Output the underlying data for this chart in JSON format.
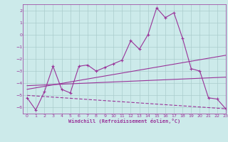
{
  "background_color": "#cceaea",
  "grid_color": "#aacccc",
  "line_color": "#993399",
  "title": "Windchill (Refroidissement éolien,°C)",
  "xlim": [
    -0.5,
    23
  ],
  "ylim": [
    -6.5,
    2.5
  ],
  "yticks": [
    -6,
    -5,
    -4,
    -3,
    -2,
    -1,
    0,
    1,
    2
  ],
  "xticks": [
    0,
    1,
    2,
    3,
    4,
    5,
    6,
    7,
    8,
    9,
    10,
    11,
    12,
    13,
    14,
    15,
    16,
    17,
    18,
    19,
    20,
    21,
    22,
    23
  ],
  "line1_x": [
    0,
    1,
    2,
    3,
    4,
    5,
    6,
    7,
    8,
    9,
    10,
    11,
    12,
    13,
    14,
    15,
    16,
    17,
    18,
    19,
    20,
    21,
    22,
    23
  ],
  "line1_y": [
    -5.2,
    -6.2,
    -4.7,
    -2.6,
    -4.5,
    -4.8,
    -2.6,
    -2.5,
    -3.0,
    -2.7,
    -2.4,
    -2.1,
    -0.5,
    -1.2,
    0.0,
    2.2,
    1.4,
    1.8,
    -0.3,
    -2.8,
    -3.0,
    -5.2,
    -5.3,
    -6.1
  ],
  "line2_x": [
    0,
    23
  ],
  "line2_y": [
    -4.5,
    -1.7
  ],
  "line3_x": [
    0,
    23
  ],
  "line3_y": [
    -4.2,
    -3.5
  ],
  "line4_x": [
    0,
    23
  ],
  "line4_y": [
    -5.0,
    -6.1
  ]
}
